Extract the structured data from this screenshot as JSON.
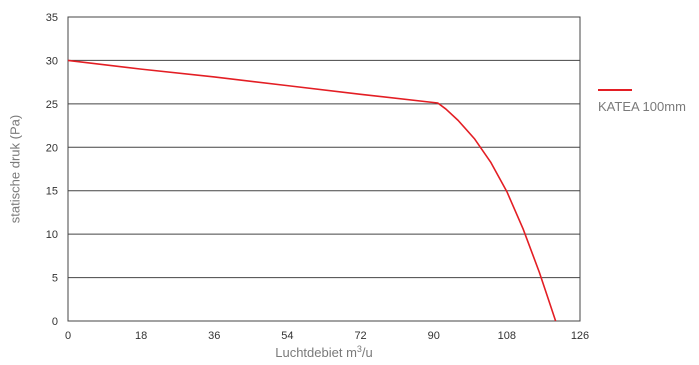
{
  "chart_data": {
    "type": "line",
    "xlabel": "Luchtdebiet m",
    "xlabel_sup": "3",
    "xlabel_suffix": "/u",
    "ylabel": "statische druk (Pa)",
    "xlim": [
      0,
      126
    ],
    "ylim": [
      0,
      35
    ],
    "x_ticks": [
      0,
      18,
      36,
      54,
      72,
      90,
      108,
      126
    ],
    "y_ticks": [
      0,
      5,
      10,
      15,
      20,
      25,
      30,
      35
    ],
    "grid": "horizontal",
    "legend_position": "right",
    "series": [
      {
        "name": "KATEA 100mm",
        "color": "#e31e24",
        "points": [
          [
            0,
            30
          ],
          [
            18,
            29.0
          ],
          [
            36,
            28.1
          ],
          [
            54,
            27.1
          ],
          [
            72,
            26.1
          ],
          [
            91,
            25.1
          ],
          [
            93,
            24.4
          ],
          [
            96,
            23.1
          ],
          [
            100,
            21.0
          ],
          [
            104,
            18.3
          ],
          [
            108,
            14.9
          ],
          [
            112,
            10.6
          ],
          [
            116,
            5.6
          ],
          [
            118,
            2.8
          ],
          [
            120,
            0
          ]
        ]
      }
    ]
  }
}
